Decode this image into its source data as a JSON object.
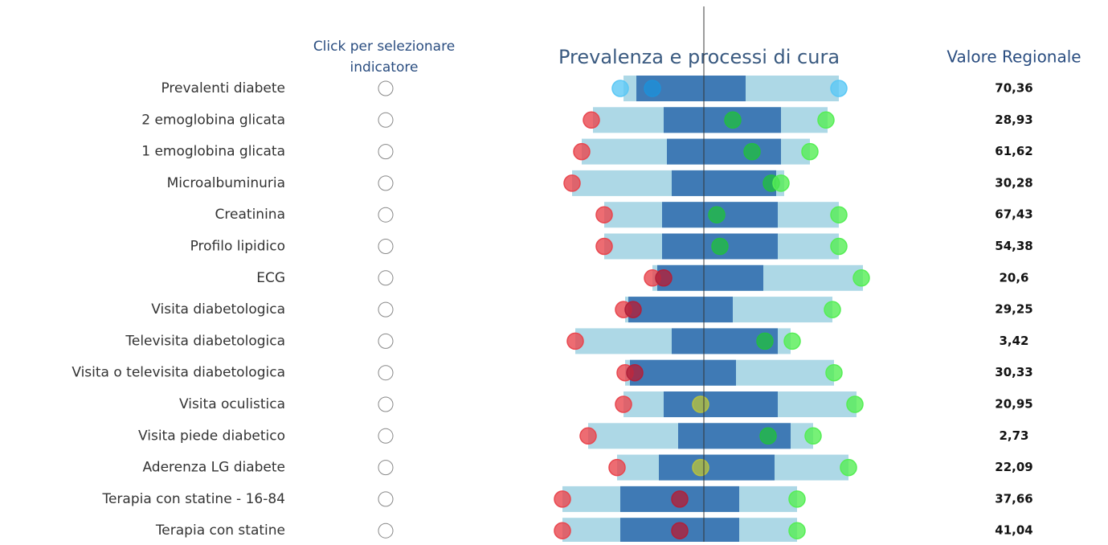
{
  "chart_data": {
    "type": "range",
    "title": "Prevalenza e processi di cura",
    "selector_header": [
      "Click per selezionare",
      "indicatore"
    ],
    "value_header": "Valore Regionale",
    "xlim": [
      0,
      100
    ],
    "reference": 50,
    "categories": [
      "Prevalenti diabete",
      "2 emoglobina glicata",
      "1 emoglobina glicata",
      "Microalbuminuria",
      "Creatinina",
      "Profilo lipidico",
      "ECG",
      "Visita diabetologica",
      "Televisita diabetologica",
      "Visita o televisita diabetologica",
      "Visita oculistica",
      "Visita piede diabetico",
      "Aderenza LG diabete",
      "Terapia con statine - 16-84",
      "Terapia con statine"
    ],
    "outer": {
      "color": "#add8e6",
      "low": [
        25,
        15.5,
        12,
        9,
        19,
        19,
        34,
        25.5,
        10,
        25.5,
        25,
        14,
        23,
        6,
        6
      ],
      "high": [
        92,
        88.5,
        83,
        75,
        92,
        92,
        99.5,
        90,
        77,
        90.5,
        97.5,
        84,
        95,
        79,
        79
      ]
    },
    "inner": {
      "color": "#3f7ab5",
      "low": [
        29,
        37.5,
        38.5,
        40,
        37,
        37,
        35.5,
        26.5,
        40,
        27,
        37.5,
        42,
        36,
        24,
        24
      ],
      "high": [
        63,
        74,
        74,
        72.5,
        73,
        73,
        68.5,
        59,
        73,
        60,
        73,
        77,
        72,
        61,
        61
      ]
    },
    "markers": [
      [
        {
          "value": 24,
          "color": "#5bc8f5"
        },
        {
          "value": 34,
          "color": "#1e90d8"
        },
        {
          "value": 92,
          "color": "#5bc8f5"
        }
      ],
      [
        {
          "value": 15,
          "color": "#e8474f"
        },
        {
          "value": 59,
          "color": "#22bb44"
        },
        {
          "value": 88,
          "color": "#55ee55"
        }
      ],
      [
        {
          "value": 12,
          "color": "#e8474f"
        },
        {
          "value": 65,
          "color": "#22bb44"
        },
        {
          "value": 83,
          "color": "#55ee55"
        }
      ],
      [
        {
          "value": 9,
          "color": "#e8474f"
        },
        {
          "value": 71,
          "color": "#22bb44"
        },
        {
          "value": 74,
          "color": "#55ee55"
        }
      ],
      [
        {
          "value": 19,
          "color": "#e8474f"
        },
        {
          "value": 54,
          "color": "#22bb44"
        },
        {
          "value": 92,
          "color": "#55ee55"
        }
      ],
      [
        {
          "value": 19,
          "color": "#e8474f"
        },
        {
          "value": 55,
          "color": "#22bb44"
        },
        {
          "value": 92,
          "color": "#55ee55"
        }
      ],
      [
        {
          "value": 34,
          "color": "#e8474f"
        },
        {
          "value": 37.5,
          "color": "#b0203a"
        },
        {
          "value": 99,
          "color": "#55ee55"
        }
      ],
      [
        {
          "value": 25,
          "color": "#e8474f"
        },
        {
          "value": 28,
          "color": "#b0203a"
        },
        {
          "value": 90,
          "color": "#55ee55"
        }
      ],
      [
        {
          "value": 10,
          "color": "#e8474f"
        },
        {
          "value": 69,
          "color": "#22bb44"
        },
        {
          "value": 77.5,
          "color": "#55ee55"
        }
      ],
      [
        {
          "value": 25.5,
          "color": "#e8474f"
        },
        {
          "value": 28.5,
          "color": "#b0203a"
        },
        {
          "value": 90.5,
          "color": "#55ee55"
        }
      ],
      [
        {
          "value": 25,
          "color": "#e8474f"
        },
        {
          "value": 49,
          "color": "#b5c040"
        },
        {
          "value": 97,
          "color": "#55ee55"
        }
      ],
      [
        {
          "value": 14,
          "color": "#e8474f"
        },
        {
          "value": 70,
          "color": "#22bb44"
        },
        {
          "value": 84,
          "color": "#55ee55"
        }
      ],
      [
        {
          "value": 23,
          "color": "#e8474f"
        },
        {
          "value": 49,
          "color": "#b5c040"
        },
        {
          "value": 95,
          "color": "#55ee55"
        }
      ],
      [
        {
          "value": 6,
          "color": "#e8474f"
        },
        {
          "value": 42.5,
          "color": "#b0203a"
        },
        {
          "value": 79,
          "color": "#55ee55"
        }
      ],
      [
        {
          "value": 6,
          "color": "#e8474f"
        },
        {
          "value": 42.5,
          "color": "#b0203a"
        },
        {
          "value": 79,
          "color": "#55ee55"
        }
      ]
    ],
    "regional_values": [
      70.36,
      28.93,
      61.62,
      30.28,
      67.43,
      54.38,
      20.6,
      29.25,
      3.42,
      30.33,
      20.95,
      2.73,
      22.09,
      37.66,
      41.04
    ],
    "value_labels": [
      "70,36",
      "28,93",
      "61,62",
      "30,28",
      "67,43",
      "54,38",
      "20,6",
      "29,25",
      "3,42",
      "30,33",
      "20,95",
      "2,73",
      "22,09",
      "37,66",
      "41,04"
    ]
  }
}
